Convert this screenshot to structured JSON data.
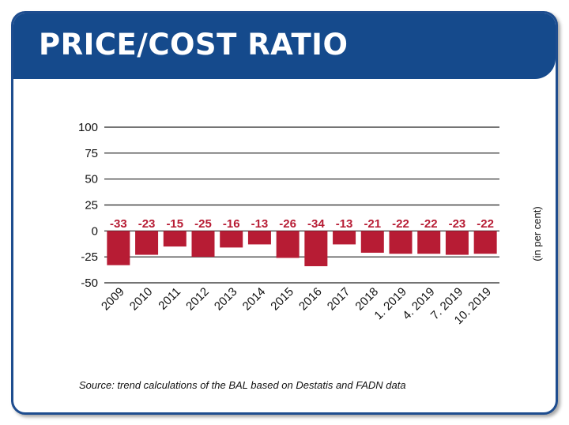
{
  "header": {
    "title": "PRICE/COST RATIO"
  },
  "unit_label": "(in per cent)",
  "source": "Source: trend calculations of the BAL based on Destatis and FADN data",
  "colors": {
    "header_bg": "#154a8c",
    "bar": "#b71c34",
    "label": "#b71c34",
    "frame": "#1e4d8f"
  },
  "chart_data": {
    "type": "bar",
    "title": "PRICE/COST RATIO",
    "ylabel": "(in per cent)",
    "xlabel": "",
    "ylim": [
      -50,
      100
    ],
    "yticks": [
      100,
      75,
      50,
      25,
      0,
      -25,
      -50
    ],
    "grid": true,
    "categories": [
      "2009",
      "2010",
      "2011",
      "2012",
      "2013",
      "2014",
      "2015",
      "2016",
      "2017",
      "2018",
      "1. 2019",
      "4. 2019",
      "7. 2019",
      "10. 2019"
    ],
    "values": [
      -33,
      -23,
      -15,
      -25,
      -16,
      -13,
      -26,
      -34,
      -13,
      -21,
      -22,
      -22,
      -23,
      -22
    ],
    "data_labels": [
      "-33",
      "-23",
      "-15",
      "-25",
      "-16",
      "-13",
      "-26",
      "-34",
      "-13",
      "-21",
      "-22",
      "-22",
      "-23",
      "-22"
    ]
  }
}
